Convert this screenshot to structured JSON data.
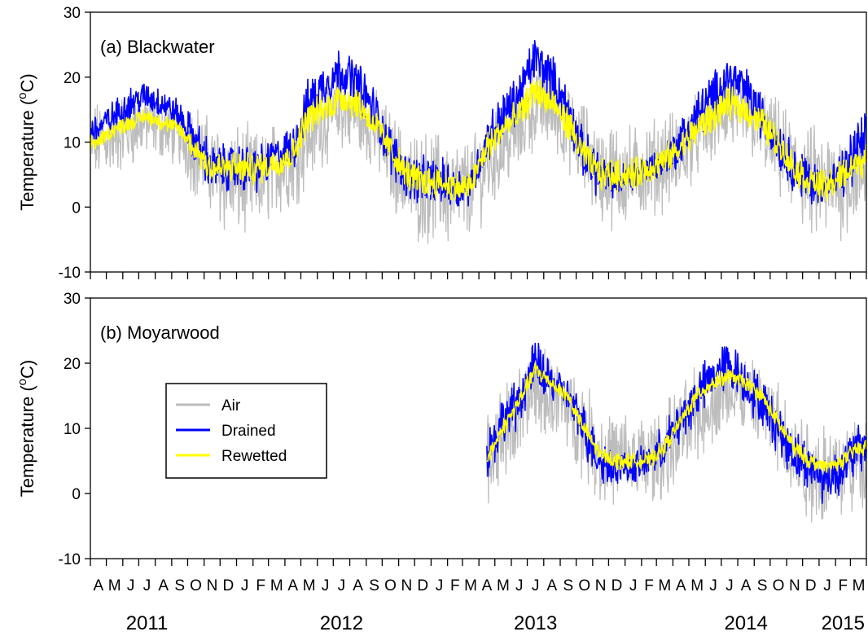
{
  "chart_data": [
    {
      "type": "line",
      "title": "(a) Blackwater",
      "ylabel": "Temperature (°C)",
      "ylabel_main": "Temperature (",
      "ylabel_degree": "o",
      "ylabel_unit": "C)",
      "ylim": [
        -10,
        30
      ],
      "yticks": [
        -10,
        0,
        10,
        20,
        30
      ],
      "x_start": "2011-04-01",
      "x_end": "2015-03-31",
      "series": [
        {
          "name": "Air",
          "color": "#bdbdbd",
          "x": [
            "2011-04",
            "2011-05",
            "2011-06",
            "2011-07",
            "2011-08",
            "2011-09",
            "2011-10",
            "2011-11",
            "2011-12",
            "2012-01",
            "2012-02",
            "2012-03",
            "2012-04",
            "2012-05",
            "2012-06",
            "2012-07",
            "2012-08",
            "2012-09",
            "2012-10",
            "2012-11",
            "2012-12",
            "2013-01",
            "2013-02",
            "2013-03",
            "2013-04",
            "2013-05",
            "2013-06",
            "2013-07",
            "2013-08",
            "2013-09",
            "2013-10",
            "2013-11",
            "2013-12",
            "2014-01",
            "2014-02",
            "2014-03",
            "2014-04",
            "2014-05",
            "2014-06",
            "2014-07",
            "2014-08",
            "2014-09",
            "2014-10",
            "2014-11",
            "2014-12",
            "2015-01",
            "2015-02",
            "2015-03"
          ],
          "mean": [
            10,
            11,
            12,
            13,
            12,
            11,
            9,
            6,
            4,
            4,
            4,
            6,
            7,
            11,
            13,
            15,
            14,
            12,
            8,
            4,
            3,
            3,
            2,
            3,
            6,
            9,
            12,
            16,
            15,
            12,
            9,
            5,
            5,
            5,
            6,
            7,
            8,
            11,
            13,
            15,
            14,
            12,
            9,
            6,
            4,
            3,
            4,
            5
          ],
          "spread": [
            5,
            5,
            5,
            4,
            4,
            4,
            6,
            6,
            7,
            7,
            6,
            6,
            6,
            6,
            5,
            5,
            5,
            5,
            6,
            6,
            7,
            7,
            7,
            6,
            6,
            5,
            6,
            6,
            5,
            5,
            6,
            6,
            7,
            6,
            6,
            6,
            6,
            5,
            5,
            5,
            5,
            5,
            6,
            6,
            7,
            7,
            7,
            6
          ]
        },
        {
          "name": "Drained",
          "color": "#0000ff",
          "x": [
            "2011-04",
            "2011-05",
            "2011-06",
            "2011-07",
            "2011-08",
            "2011-09",
            "2011-10",
            "2011-11",
            "2011-12",
            "2012-01",
            "2012-02",
            "2012-03",
            "2012-04",
            "2012-05",
            "2012-06",
            "2012-07",
            "2012-08",
            "2012-09",
            "2012-10",
            "2012-11",
            "2012-12",
            "2013-01",
            "2013-02",
            "2013-03",
            "2013-04",
            "2013-05",
            "2013-06",
            "2013-07",
            "2013-08",
            "2013-09",
            "2013-10",
            "2013-11",
            "2013-12",
            "2014-01",
            "2014-02",
            "2014-03",
            "2014-04",
            "2014-05",
            "2014-06",
            "2014-07",
            "2014-08",
            "2014-09",
            "2014-10",
            "2014-11",
            "2014-12",
            "2015-01",
            "2015-02",
            "2015-03"
          ],
          "mean": [
            12,
            14,
            16,
            17,
            16,
            14,
            10,
            6,
            6,
            6,
            6,
            8,
            9,
            16,
            19,
            21,
            19,
            15,
            9,
            5,
            4,
            4,
            3,
            3,
            10,
            14,
            17,
            23,
            20,
            15,
            8,
            5,
            4,
            5,
            6,
            7,
            10,
            14,
            17,
            20,
            18,
            14,
            10,
            6,
            4,
            3,
            5,
            9
          ],
          "spread": [
            2,
            2,
            2,
            2,
            2,
            2,
            3,
            3,
            3,
            3,
            3,
            2,
            3,
            3,
            3,
            3,
            3,
            3,
            3,
            3,
            3,
            3,
            3,
            2,
            3,
            3,
            3,
            3,
            3,
            3,
            3,
            3,
            2,
            2,
            2,
            2,
            3,
            3,
            3,
            3,
            3,
            3,
            3,
            3,
            3,
            2,
            3,
            4
          ]
        },
        {
          "name": "Rewetted",
          "color": "#ffff00",
          "x": [
            "2011-04",
            "2011-05",
            "2011-06",
            "2011-07",
            "2011-08",
            "2011-09",
            "2011-10",
            "2011-11",
            "2011-12",
            "2012-01",
            "2012-02",
            "2012-03",
            "2012-04",
            "2012-05",
            "2012-06",
            "2012-07",
            "2012-08",
            "2012-09",
            "2012-10",
            "2012-11",
            "2012-12",
            "2013-01",
            "2013-02",
            "2013-03",
            "2013-04",
            "2013-05",
            "2013-06",
            "2013-07",
            "2013-08",
            "2013-09",
            "2013-10",
            "2013-11",
            "2013-12",
            "2014-01",
            "2014-02",
            "2014-03",
            "2014-04",
            "2014-05",
            "2014-06",
            "2014-07",
            "2014-08",
            "2014-09",
            "2014-10",
            "2014-11",
            "2014-12",
            "2015-01",
            "2015-02",
            "2015-03"
          ],
          "mean": [
            10,
            12,
            13,
            14,
            13,
            12,
            9,
            6,
            6,
            6,
            6,
            7,
            8,
            14,
            15,
            17,
            16,
            13,
            9,
            5,
            4,
            4,
            3,
            3,
            9,
            12,
            14,
            18,
            16,
            13,
            8,
            5,
            5,
            5,
            6,
            7,
            9,
            12,
            14,
            16,
            15,
            13,
            10,
            6,
            4,
            3,
            5,
            7
          ],
          "spread": [
            1,
            1,
            1,
            1,
            1,
            1,
            2,
            2,
            2,
            2,
            2,
            2,
            2,
            2,
            2,
            2,
            2,
            2,
            2,
            2,
            2,
            2,
            2,
            2,
            2,
            2,
            2,
            2,
            2,
            2,
            2,
            2,
            2,
            2,
            2,
            2,
            2,
            2,
            2,
            2,
            2,
            2,
            2,
            2,
            2,
            2,
            2,
            2
          ]
        }
      ]
    },
    {
      "type": "line",
      "title": "(b) Moyarwood",
      "ylabel": "Temperature (°C)",
      "ylabel_main": "Temperature (",
      "ylabel_degree": "o",
      "ylabel_unit": "C)",
      "ylim": [
        -10,
        30
      ],
      "yticks": [
        -10,
        0,
        10,
        20,
        30
      ],
      "x_start": "2011-04-01",
      "x_end": "2015-03-31",
      "series": [
        {
          "name": "Air",
          "color": "#bdbdbd",
          "x": [
            "2013-04",
            "2013-05",
            "2013-06",
            "2013-07",
            "2013-08",
            "2013-09",
            "2013-10",
            "2013-11",
            "2013-12",
            "2014-01",
            "2014-02",
            "2014-03",
            "2014-04",
            "2014-05",
            "2014-06",
            "2014-07",
            "2014-08",
            "2014-09",
            "2014-10",
            "2014-11",
            "2014-12",
            "2015-01",
            "2015-02",
            "2015-03"
          ],
          "mean": [
            5,
            9,
            12,
            16,
            15,
            13,
            10,
            6,
            5,
            5,
            5,
            6,
            9,
            12,
            14,
            16,
            15,
            13,
            10,
            6,
            4,
            3,
            4,
            5
          ],
          "spread": [
            6,
            6,
            6,
            6,
            5,
            5,
            6,
            6,
            6,
            6,
            6,
            6,
            6,
            6,
            5,
            5,
            5,
            5,
            6,
            6,
            7,
            7,
            6,
            6
          ]
        },
        {
          "name": "Drained",
          "color": "#0000ff",
          "x": [
            "2013-04",
            "2013-05",
            "2013-06",
            "2013-07",
            "2013-08",
            "2013-09",
            "2013-10",
            "2013-11",
            "2013-12",
            "2014-01",
            "2014-02",
            "2014-03",
            "2014-04",
            "2014-05",
            "2014-06",
            "2014-07",
            "2014-08",
            "2014-09",
            "2014-10",
            "2014-11",
            "2014-12",
            "2015-01",
            "2015-02",
            "2015-03"
          ],
          "mean": [
            6,
            11,
            14,
            20,
            17,
            15,
            10,
            5,
            4,
            4,
            5,
            7,
            11,
            15,
            18,
            20,
            17,
            14,
            10,
            6,
            4,
            2,
            4,
            7
          ],
          "spread": [
            3,
            3,
            3,
            3,
            3,
            2,
            3,
            3,
            2,
            2,
            2,
            3,
            3,
            3,
            3,
            3,
            3,
            3,
            3,
            3,
            3,
            3,
            3,
            3
          ]
        },
        {
          "name": "Rewetted",
          "color": "#ffff00",
          "x": [
            "2013-04",
            "2013-05",
            "2013-06",
            "2013-07",
            "2013-08",
            "2013-09",
            "2013-10",
            "2013-11",
            "2013-12",
            "2014-01",
            "2014-02",
            "2014-03",
            "2014-04",
            "2014-05",
            "2014-06",
            "2014-07",
            "2014-08",
            "2014-09",
            "2014-10",
            "2014-11",
            "2014-12",
            "2015-01",
            "2015-02",
            "2015-03"
          ],
          "mean": [
            5,
            10,
            14,
            19,
            17,
            15,
            10,
            6,
            5,
            5,
            5,
            7,
            11,
            15,
            17,
            18,
            17,
            15,
            11,
            7,
            5,
            4,
            5,
            7
          ],
          "spread": [
            1,
            1,
            1,
            1,
            1,
            1,
            1,
            1,
            1,
            1,
            1,
            1,
            1,
            1,
            1,
            1,
            1,
            1,
            1,
            1,
            1,
            1,
            1,
            1
          ]
        }
      ]
    }
  ],
  "x_axis": {
    "month_labels": [
      "A",
      "M",
      "J",
      "J",
      "A",
      "S",
      "O",
      "N",
      "D",
      "J",
      "F",
      "M",
      "A",
      "M",
      "J",
      "J",
      "A",
      "S",
      "O",
      "N",
      "D",
      "J",
      "F",
      "M",
      "A",
      "M",
      "J",
      "J",
      "A",
      "S",
      "O",
      "N",
      "D",
      "J",
      "F",
      "M",
      "A",
      "M",
      "J",
      "J",
      "A",
      "S",
      "O",
      "N",
      "D",
      "J",
      "F",
      "M"
    ],
    "years": [
      {
        "label": "2011",
        "month_index": 3
      },
      {
        "label": "2012",
        "month_index": 15
      },
      {
        "label": "2013",
        "month_index": 27
      },
      {
        "label": "2014",
        "month_index": 40
      },
      {
        "label": "2015",
        "month_index": 46
      }
    ]
  },
  "legend": {
    "items": [
      {
        "label": "Air",
        "color": "#bdbdbd"
      },
      {
        "label": "Drained",
        "color": "#0000ff"
      },
      {
        "label": "Rewetted",
        "color": "#ffff00"
      }
    ]
  }
}
